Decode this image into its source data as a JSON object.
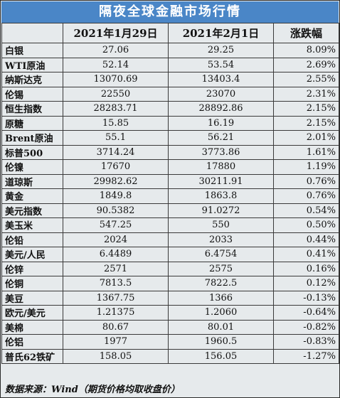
{
  "title": "隔夜全球金融市场行情",
  "header": {
    "col_name": "",
    "col_date1": "2021年1月29日",
    "col_date2": "2021年2月1日",
    "col_change": "涨跌幅"
  },
  "rows": [
    {
      "name": "白银",
      "v1": "27.06",
      "v2": "29.25",
      "chg": "8.09%"
    },
    {
      "name": "WTI原油",
      "v1": "52.14",
      "v2": "53.54",
      "chg": "2.69%"
    },
    {
      "name": "纳斯达克",
      "v1": "13070.69",
      "v2": "13403.4",
      "chg": "2.55%"
    },
    {
      "name": "伦锡",
      "v1": "22550",
      "v2": "23070",
      "chg": "2.31%"
    },
    {
      "name": "恒生指数",
      "v1": "28283.71",
      "v2": "28892.86",
      "chg": "2.15%"
    },
    {
      "name": "原糖",
      "v1": "15.85",
      "v2": "16.19",
      "chg": "2.15%"
    },
    {
      "name": "Brent原油",
      "v1": "55.1",
      "v2": "56.21",
      "chg": "2.01%"
    },
    {
      "name": "标普500",
      "v1": "3714.24",
      "v2": "3773.86",
      "chg": "1.61%"
    },
    {
      "name": "伦镍",
      "v1": "17670",
      "v2": "17880",
      "chg": "1.19%"
    },
    {
      "name": "道琼斯",
      "v1": "29982.62",
      "v2": "30211.91",
      "chg": "0.76%"
    },
    {
      "name": "黄金",
      "v1": "1849.8",
      "v2": "1863.8",
      "chg": "0.76%"
    },
    {
      "name": "美元指数",
      "v1": "90.5382",
      "v2": "91.0272",
      "chg": "0.54%"
    },
    {
      "name": "美玉米",
      "v1": "547.25",
      "v2": "550",
      "chg": "0.50%"
    },
    {
      "name": "伦铅",
      "v1": "2024",
      "v2": "2033",
      "chg": "0.44%"
    },
    {
      "name": "美元/人民",
      "v1": "6.4489",
      "v2": "6.4754",
      "chg": "0.41%"
    },
    {
      "name": "伦锌",
      "v1": "2571",
      "v2": "2575",
      "chg": "0.16%"
    },
    {
      "name": "伦铜",
      "v1": "7813.5",
      "v2": "7822.5",
      "chg": "0.12%"
    },
    {
      "name": "美豆",
      "v1": "1367.75",
      "v2": "1366",
      "chg": "-0.13%"
    },
    {
      "name": "欧元/美元",
      "v1": "1.21375",
      "v2": "1.2060",
      "chg": "-0.64%"
    },
    {
      "name": "美棉",
      "v1": "80.67",
      "v2": "80.01",
      "chg": "-0.82%"
    },
    {
      "name": "伦铝",
      "v1": "1977",
      "v2": "1960.5",
      "chg": "-0.83%"
    },
    {
      "name": "普氏62铁矿",
      "v1": "158.05",
      "v2": "156.05",
      "chg": "-1.27%"
    }
  ],
  "footer": "数据来源：Wind（期货价格均取收盘价）",
  "colors": {
    "title_bg": "#4a86c7",
    "table_bg": "#e6eaec"
  }
}
